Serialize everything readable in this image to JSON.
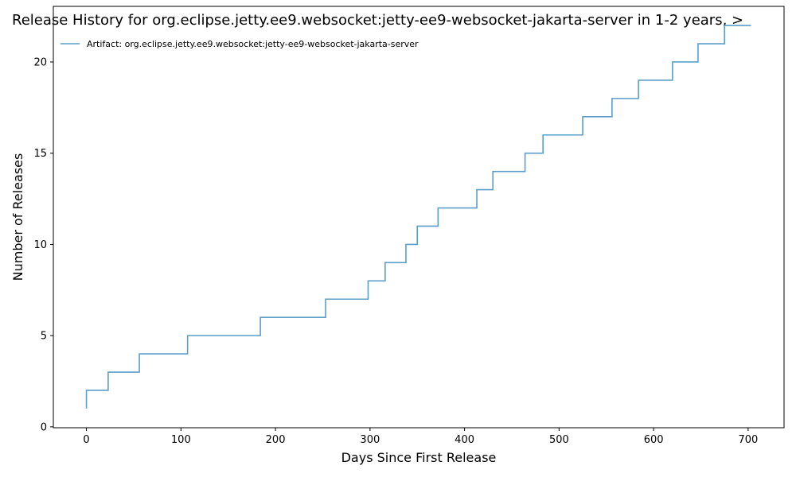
{
  "chart_data": {
    "type": "line",
    "step": "post",
    "title": "Release History for org.eclipse.jetty.ee9.websocket:jetty-ee9-websocket-jakarta-server in 1-2 years, >",
    "xlabel": "Days Since First Release",
    "ylabel": "Number of Releases",
    "xlim": [
      -35,
      738
    ],
    "ylim": [
      -0.05,
      23.05
    ],
    "xticks": [
      0,
      100,
      200,
      300,
      400,
      500,
      600,
      700
    ],
    "yticks": [
      0,
      5,
      10,
      15,
      20
    ],
    "grid": false,
    "legend_position": "top-left",
    "series": [
      {
        "name": "Artifact: org.eclipse.jetty.ee9.websocket:jetty-ee9-websocket-jakarta-server",
        "color": "#5b9ec9",
        "x": [
          0,
          0,
          23,
          56,
          107,
          184,
          253,
          298,
          316,
          338,
          350,
          372,
          413,
          430,
          464,
          483,
          525,
          556,
          584,
          620,
          647,
          675,
          703
        ],
        "y": [
          1,
          2,
          3,
          4,
          5,
          6,
          7,
          8,
          9,
          10,
          11,
          12,
          13,
          14,
          15,
          16,
          17,
          18,
          19,
          20,
          21,
          22,
          22
        ]
      }
    ]
  }
}
